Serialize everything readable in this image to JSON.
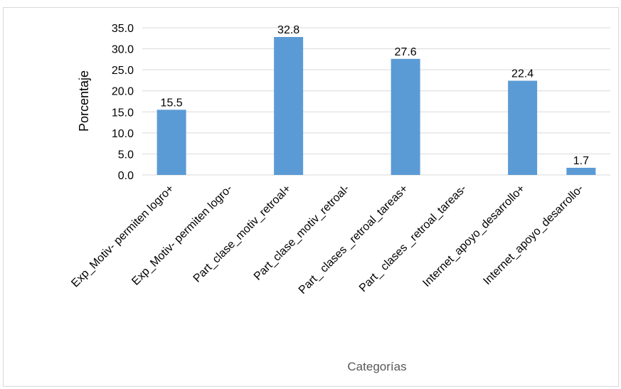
{
  "chart_data": {
    "type": "bar",
    "title": "",
    "xlabel": "Categorías",
    "ylabel": "Porcentaje",
    "ylim": [
      0,
      35
    ],
    "ytick_step": 5,
    "ytick_decimals": 1,
    "grid": true,
    "legend": "none",
    "bar_color": "#5b9bd5",
    "gridline_color": "#d9d9d9",
    "categories": [
      "Exp_Motiv- permiten logro+",
      "Exp_Motiv- permiten logro-",
      "Part_clase_motiv_retroal+",
      "Part_clase_motiv_retroal-",
      "Part_ clases _retroal_tareas+",
      "Part_ clases _retroal_tareas-",
      "Internet_apoyo_desarrollo+",
      "Internet_apoyo_desarrollo-"
    ],
    "values": [
      15.5,
      null,
      32.8,
      null,
      27.6,
      null,
      22.4,
      1.7
    ],
    "data_labels": [
      "15.5",
      "",
      "32.8",
      "",
      "27.6",
      "",
      "22.4",
      "1.7"
    ]
  }
}
